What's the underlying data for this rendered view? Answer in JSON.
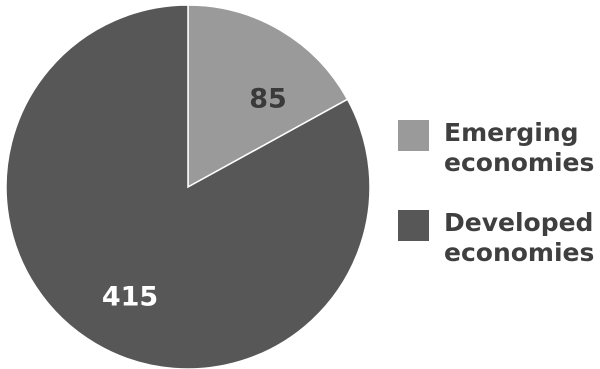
{
  "chart_data": {
    "type": "pie",
    "slices": [
      {
        "label": "Emerging economies",
        "value": 85,
        "display": "85",
        "color": "#9a9a9a",
        "label_color": "#3a3a3a"
      },
      {
        "label": "Developed economies",
        "value": 415,
        "display": "415",
        "color": "#575757",
        "label_color": "#ffffff"
      }
    ],
    "legend": {
      "placement": "right",
      "items": [
        {
          "label": "Emerging economies",
          "color": "#9a9a9a"
        },
        {
          "label": "Developed economies",
          "color": "#575757"
        }
      ]
    }
  }
}
